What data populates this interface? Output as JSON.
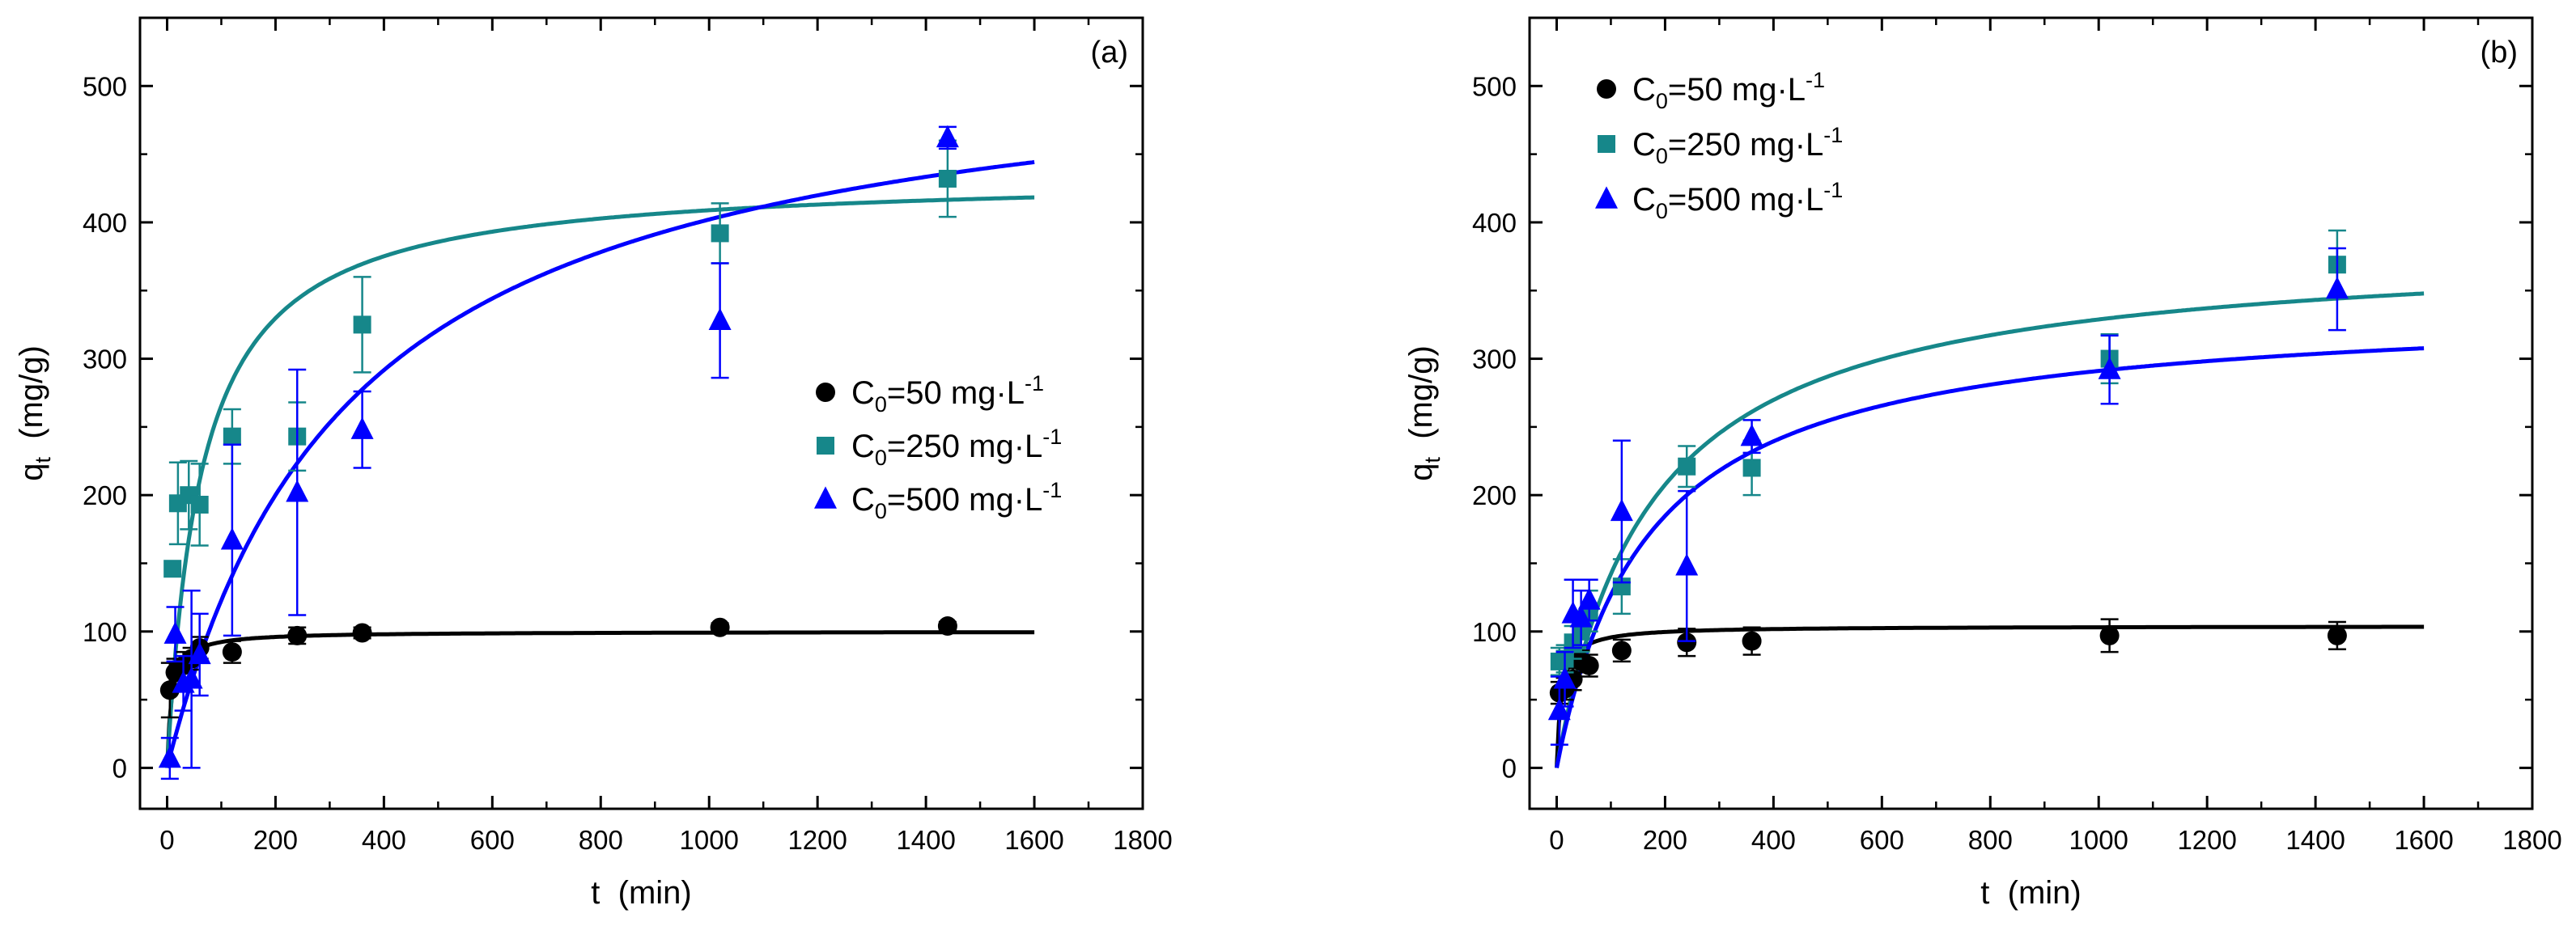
{
  "chart_data": [
    {
      "type": "scatter",
      "panel_label": "(a)",
      "xlabel": "t  (min)",
      "ylabel": "q",
      "ylabel_sub": "t",
      "ylabel_unit": "  (mg/g)",
      "xlim": [
        -50,
        1800
      ],
      "ylim": [
        -30,
        550
      ],
      "xticks": [
        0,
        200,
        400,
        600,
        800,
        1000,
        1200,
        1400,
        1600,
        1800
      ],
      "yticks": [
        0,
        100,
        200,
        300,
        400,
        500
      ],
      "legend_position": "center-right",
      "series": [
        {
          "name": "C0=50 mg·L-1",
          "legend": {
            "pre": "C",
            "sub": "0",
            "mid": "=50 mg·L",
            "sup": "-1"
          },
          "marker": "circle",
          "color": "#000000",
          "points": [
            {
              "x": 5,
              "y": 57,
              "err": 20
            },
            {
              "x": 15,
              "y": 70,
              "err": 10
            },
            {
              "x": 30,
              "y": 75,
              "err": 10
            },
            {
              "x": 45,
              "y": 80,
              "err": 8
            },
            {
              "x": 60,
              "y": 88,
              "err": 8
            },
            {
              "x": 120,
              "y": 85,
              "err": 8
            },
            {
              "x": 240,
              "y": 97,
              "err": 6
            },
            {
              "x": 360,
              "y": 99,
              "err": 4
            },
            {
              "x": 1020,
              "y": 103,
              "err": 3
            },
            {
              "x": 1440,
              "y": 104,
              "err": 3
            }
          ],
          "fit": {
            "model": "pseudo-second-order",
            "qe": 100,
            "k": 0.0012
          }
        },
        {
          "name": "C0=250 mg·L-1",
          "legend": {
            "pre": "C",
            "sub": "0",
            "mid": "=250 mg·L",
            "sup": "-1"
          },
          "marker": "square",
          "color": "#16878a",
          "points": [
            {
              "x": 10,
              "y": 146,
              "err": 0
            },
            {
              "x": 20,
              "y": 194,
              "err": 30
            },
            {
              "x": 40,
              "y": 200,
              "err": 25
            },
            {
              "x": 60,
              "y": 193,
              "err": 30
            },
            {
              "x": 120,
              "y": 243,
              "err": 20
            },
            {
              "x": 240,
              "y": 243,
              "err": 25
            },
            {
              "x": 360,
              "y": 325,
              "err": 35
            },
            {
              "x": 1020,
              "y": 392,
              "err": 22
            },
            {
              "x": 1440,
              "y": 432,
              "err": 28
            }
          ],
          "fit": {
            "model": "pseudo-second-order",
            "qe": 435,
            "k": 3.6e-05
          }
        },
        {
          "name": "C0=500 mg·L-1",
          "legend": {
            "pre": "C",
            "sub": "0",
            "mid": "=500 mg·L",
            "sup": "-1"
          },
          "marker": "triangle",
          "color": "#0000ff",
          "points": [
            {
              "x": 5,
              "y": 7,
              "err": 15
            },
            {
              "x": 15,
              "y": 98,
              "err": 20
            },
            {
              "x": 30,
              "y": 62,
              "err": 20
            },
            {
              "x": 45,
              "y": 65,
              "err": 65
            },
            {
              "x": 60,
              "y": 83,
              "err": 30
            },
            {
              "x": 120,
              "y": 167,
              "err": 70
            },
            {
              "x": 240,
              "y": 202,
              "err": 90
            },
            {
              "x": 360,
              "y": 248,
              "err": 28
            },
            {
              "x": 1020,
              "y": 328,
              "err": 42
            },
            {
              "x": 1440,
              "y": 462,
              "err": 8
            }
          ],
          "fit": {
            "model": "pseudo-second-order",
            "qe": 538,
            "k": 5.5e-06
          }
        }
      ]
    },
    {
      "type": "scatter",
      "panel_label": "(b)",
      "xlabel": "t  (min)",
      "ylabel": "q",
      "ylabel_sub": "t",
      "ylabel_unit": "  (mg/g)",
      "xlim": [
        -50,
        1800
      ],
      "ylim": [
        -30,
        550
      ],
      "xticks": [
        0,
        200,
        400,
        600,
        800,
        1000,
        1200,
        1400,
        1600,
        1800
      ],
      "yticks": [
        0,
        100,
        200,
        300,
        400,
        500
      ],
      "legend_position": "top-left",
      "series": [
        {
          "name": "C0=50 mg·L-1",
          "legend": {
            "pre": "C",
            "sub": "0",
            "mid": "=50 mg·L",
            "sup": "-1"
          },
          "marker": "circle",
          "color": "#000000",
          "points": [
            {
              "x": 5,
              "y": 55,
              "err": 8
            },
            {
              "x": 15,
              "y": 58,
              "err": 8
            },
            {
              "x": 30,
              "y": 65,
              "err": 8
            },
            {
              "x": 45,
              "y": 78,
              "err": 8
            },
            {
              "x": 60,
              "y": 75,
              "err": 8
            },
            {
              "x": 120,
              "y": 86,
              "err": 8
            },
            {
              "x": 240,
              "y": 92,
              "err": 10
            },
            {
              "x": 360,
              "y": 93,
              "err": 10
            },
            {
              "x": 1020,
              "y": 97,
              "err": 12
            },
            {
              "x": 1440,
              "y": 97,
              "err": 10
            }
          ],
          "fit": {
            "model": "pseudo-second-order",
            "qe": 104,
            "k": 0.0011
          }
        },
        {
          "name": "C0=250 mg·L-1",
          "legend": {
            "pre": "C",
            "sub": "0",
            "mid": "=250 mg·L",
            "sup": "-1"
          },
          "marker": "square",
          "color": "#16878a",
          "points": [
            {
              "x": 5,
              "y": 78,
              "err": 10
            },
            {
              "x": 15,
              "y": 80,
              "err": 10
            },
            {
              "x": 30,
              "y": 92,
              "err": 12
            },
            {
              "x": 45,
              "y": 100,
              "err": 15
            },
            {
              "x": 60,
              "y": 115,
              "err": 15
            },
            {
              "x": 120,
              "y": 133,
              "err": 20
            },
            {
              "x": 240,
              "y": 221,
              "err": 15
            },
            {
              "x": 360,
              "y": 220,
              "err": 20
            },
            {
              "x": 1020,
              "y": 300,
              "err": 18
            },
            {
              "x": 1440,
              "y": 369,
              "err": 25
            }
          ],
          "fit": {
            "model": "pseudo-second-order",
            "qe": 385,
            "k": 1.52e-05
          }
        },
        {
          "name": "C0=500 mg·L-1",
          "legend": {
            "pre": "C",
            "sub": "0",
            "mid": "=500 mg·L",
            "sup": "-1"
          },
          "marker": "triangle",
          "color": "#0000ff",
          "points": [
            {
              "x": 5,
              "y": 42,
              "err": 25
            },
            {
              "x": 15,
              "y": 65,
              "err": 20
            },
            {
              "x": 30,
              "y": 113,
              "err": 25
            },
            {
              "x": 45,
              "y": 110,
              "err": 20
            },
            {
              "x": 60,
              "y": 123,
              "err": 15
            },
            {
              "x": 120,
              "y": 188,
              "err": 52
            },
            {
              "x": 240,
              "y": 148,
              "err": 55
            },
            {
              "x": 360,
              "y": 243,
              "err": 12
            },
            {
              "x": 1020,
              "y": 292,
              "err": 25
            },
            {
              "x": 1440,
              "y": 351,
              "err": 30
            }
          ],
          "fit": {
            "model": "pseudo-second-order",
            "qe": 340,
            "k": 1.75e-05
          }
        }
      ]
    }
  ]
}
